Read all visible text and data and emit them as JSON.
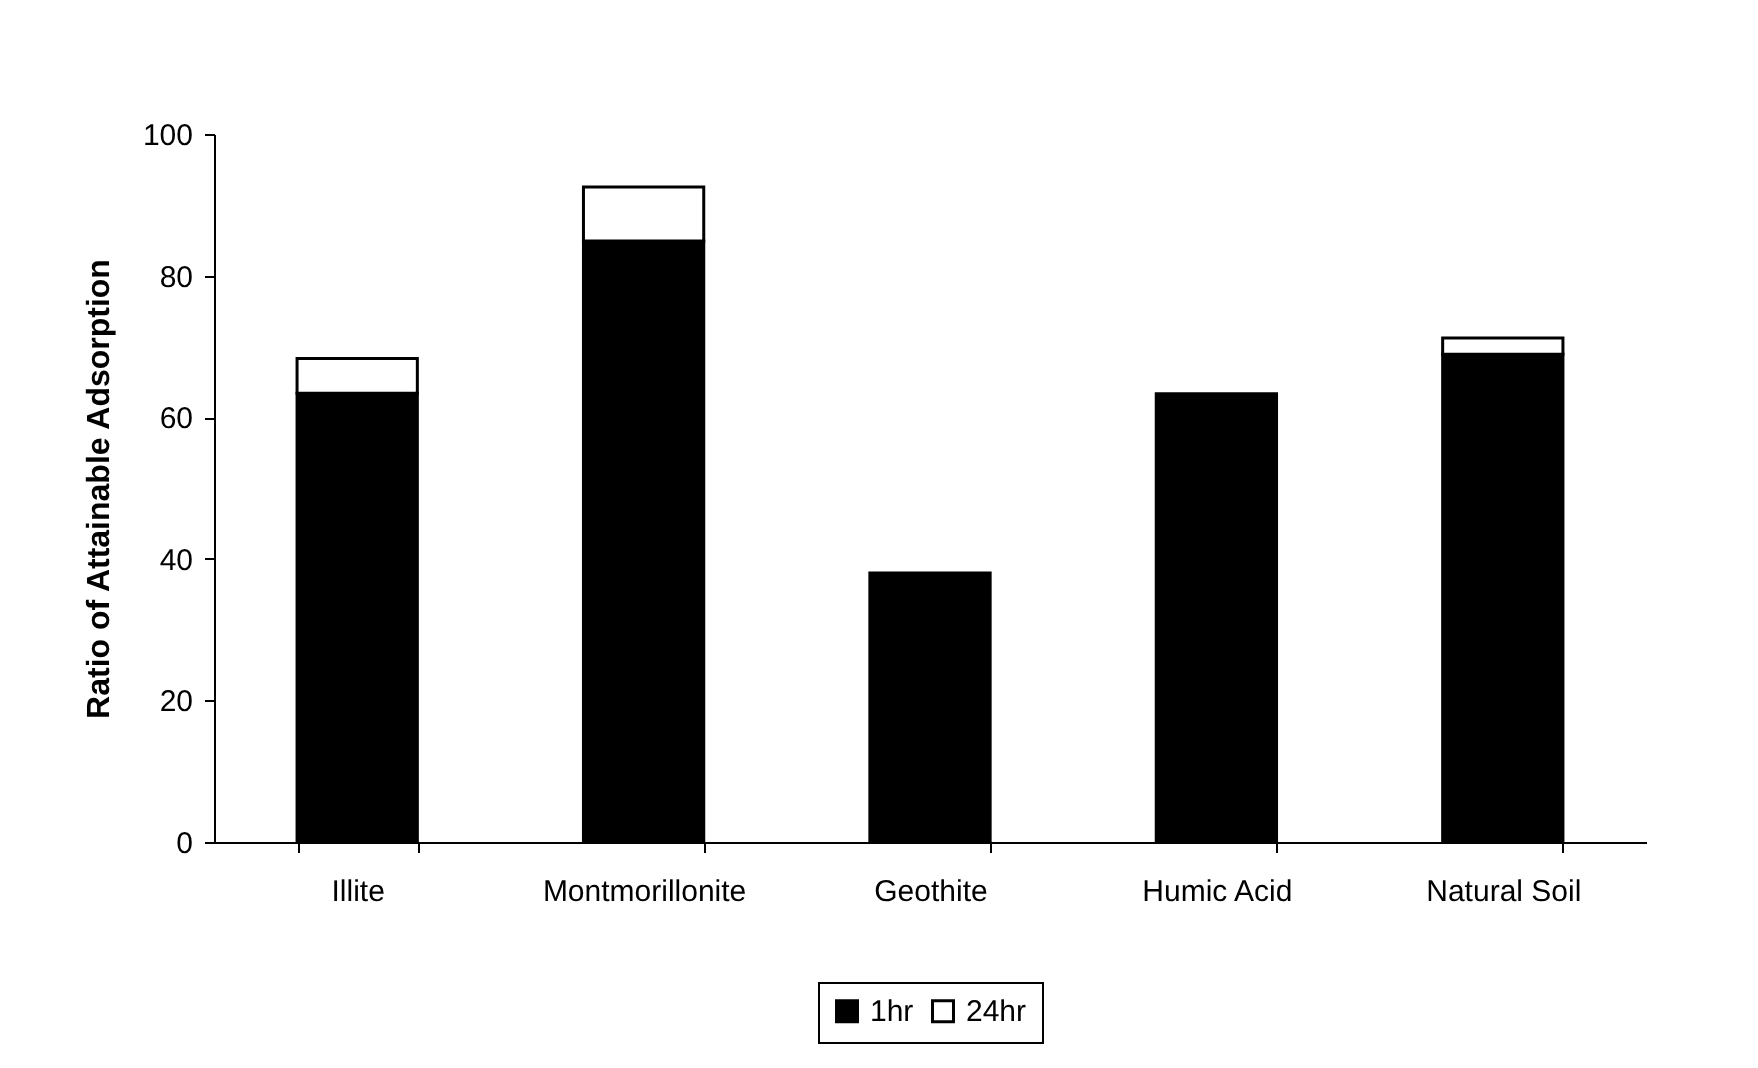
{
  "chart_data": {
    "type": "bar",
    "stacked": true,
    "ylabel": "Ratio of Attainable Adsorption",
    "categories": [
      "Illite",
      "Montmorillonite",
      "Geothite",
      "Humic Acid",
      "Natural Soil"
    ],
    "series": [
      {
        "name": "1hr",
        "color": "#000000",
        "values": [
          63.4,
          84.9,
          38.0,
          63.3,
          68.9
        ]
      },
      {
        "name": "24hr",
        "color": "#ffffff",
        "values": [
          4.9,
          7.6,
          null,
          null,
          2.3
        ]
      }
    ],
    "ylim": [
      0,
      100
    ],
    "yticks": [
      0,
      20,
      40,
      60,
      80,
      100
    ],
    "grid": false,
    "legend": "bottom"
  }
}
